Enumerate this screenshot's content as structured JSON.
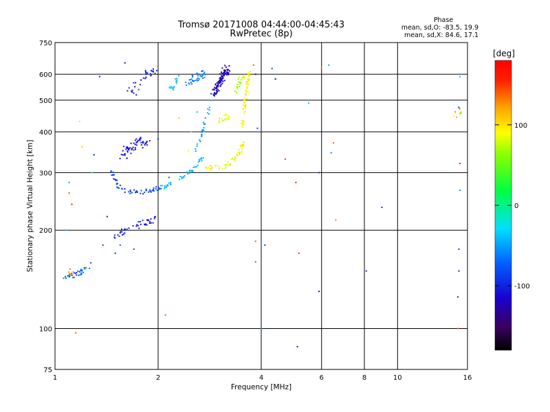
{
  "chart_data": {
    "type": "scatter",
    "title": "Tromsø 20171008 04:44:00-04:45:43",
    "subtitle": "RwPretec (8p)",
    "xlabel": "Frequency [MHz]",
    "ylabel": "Stationary phase Virtual Height [km]",
    "x_scale": "log",
    "y_scale": "log",
    "xlim": [
      1,
      16
    ],
    "ylim": [
      75,
      750
    ],
    "x_ticks": [
      1,
      2,
      4,
      6,
      8,
      10,
      16
    ],
    "x_tick_labels": [
      "1",
      "2",
      "4",
      "6",
      "8",
      "10",
      "16"
    ],
    "y_ticks": [
      75,
      100,
      200,
      300,
      400,
      500,
      600,
      750
    ],
    "y_tick_labels": [
      "75",
      "100",
      "200",
      "300",
      "400",
      "500",
      "600",
      "750"
    ],
    "grid": true,
    "phase_info": {
      "title": "Phase",
      "line_o": "mean, sd,O: -83.5, 19.9",
      "line_x": "mean, sd,X:  84.6, 17.1"
    },
    "colorbar": {
      "label": "[deg]",
      "range": [
        -180,
        180
      ],
      "ticks": [
        100,
        0,
        -100
      ],
      "tick_labels": [
        "100",
        "0",
        "-100"
      ]
    },
    "clusters": [
      {
        "x": [
          1.05,
          1.12,
          1.2,
          1.28
        ],
        "y": [
          142,
          145,
          150,
          158
        ],
        "spread": 0.015,
        "n": 34,
        "phase": [
          -110,
          -70
        ]
      },
      {
        "x": [
          1.1,
          1.14
        ],
        "y": [
          150,
          145
        ],
        "spread": 0.015,
        "n": 6,
        "phase": [
          120,
          160
        ]
      },
      {
        "x": [
          1.48,
          1.58,
          1.72,
          1.85,
          1.95
        ],
        "y": [
          190,
          198,
          205,
          212,
          218
        ],
        "spread": 0.02,
        "n": 44,
        "phase": [
          -125,
          -105
        ]
      },
      {
        "x": [
          1.46,
          1.5,
          1.55,
          1.65,
          1.8,
          1.95,
          2.05
        ],
        "y": [
          305,
          285,
          268,
          262,
          262,
          266,
          270
        ],
        "spread": 0.012,
        "n": 60,
        "phase": [
          -110,
          -90
        ]
      },
      {
        "x": [
          1.58,
          1.65,
          1.75,
          1.85
        ],
        "y": [
          340,
          355,
          375,
          365
        ],
        "spread": 0.025,
        "n": 58,
        "phase": [
          -125,
          -105
        ]
      },
      {
        "x": [
          2.05,
          2.2,
          2.4,
          2.55,
          2.7
        ],
        "y": [
          270,
          278,
          292,
          310,
          335
        ],
        "spread": 0.012,
        "n": 46,
        "phase": [
          -75,
          -55
        ]
      },
      {
        "x": [
          2.55,
          2.65,
          2.75,
          2.85,
          2.95
        ],
        "y": [
          340,
          380,
          430,
          490,
          545
        ],
        "spread": 0.01,
        "n": 30,
        "phase": [
          -80,
          -60
        ]
      },
      {
        "x": [
          2.7,
          2.9,
          3.1,
          3.3,
          3.45,
          3.55
        ],
        "y": [
          315,
          310,
          312,
          325,
          345,
          370
        ],
        "spread": 0.012,
        "n": 55,
        "phase": [
          70,
          110
        ]
      },
      {
        "x": [
          3.5,
          3.55,
          3.6,
          3.65,
          3.7
        ],
        "y": [
          400,
          450,
          510,
          560,
          610
        ],
        "spread": 0.01,
        "n": 60,
        "phase": [
          80,
          110
        ]
      },
      {
        "x": [
          3.35,
          3.45,
          3.55
        ],
        "y": [
          530,
          560,
          600
        ],
        "spread": 0.015,
        "n": 20,
        "phase": [
          40,
          75
        ]
      },
      {
        "x": [
          3.0,
          3.1,
          3.2
        ],
        "y": [
          430,
          440,
          445
        ],
        "spread": 0.015,
        "n": 16,
        "phase": [
          60,
          95
        ]
      },
      {
        "x": [
          2.9,
          3.0,
          3.1,
          3.2
        ],
        "y": [
          520,
          560,
          600,
          630
        ],
        "spread": 0.02,
        "n": 95,
        "phase": [
          -140,
          -115
        ]
      },
      {
        "x": [
          2.45,
          2.6,
          2.75
        ],
        "y": [
          560,
          590,
          610
        ],
        "spread": 0.02,
        "n": 38,
        "phase": [
          -95,
          -70
        ]
      },
      {
        "x": [
          1.65,
          1.75,
          1.85,
          1.95
        ],
        "y": [
          520,
          555,
          600,
          610
        ],
        "spread": 0.025,
        "n": 32,
        "phase": [
          -120,
          -100
        ]
      },
      {
        "x": [
          2.15,
          2.3
        ],
        "y": [
          540,
          580
        ],
        "spread": 0.02,
        "n": 16,
        "phase": [
          -70,
          -50
        ]
      },
      {
        "x": [
          14.9
        ],
        "y": [
          460
        ],
        "spread": 0.03,
        "n": 10,
        "phase": [
          -180,
          180
        ]
      }
    ],
    "scattered_points": [
      [
        1.08,
        200,
        -60
      ],
      [
        1.1,
        260,
        150
      ],
      [
        1.1,
        280,
        -70
      ],
      [
        1.12,
        240,
        170
      ],
      [
        1.15,
        97,
        150
      ],
      [
        1.18,
        430,
        100
      ],
      [
        1.2,
        360,
        110
      ],
      [
        1.28,
        300,
        -50
      ],
      [
        1.3,
        340,
        -120
      ],
      [
        1.35,
        590,
        -110
      ],
      [
        1.38,
        180,
        -100
      ],
      [
        1.42,
        220,
        -130
      ],
      [
        1.5,
        170,
        -110
      ],
      [
        1.55,
        180,
        -90
      ],
      [
        1.6,
        650,
        -120
      ],
      [
        1.7,
        175,
        -100
      ],
      [
        2.0,
        380,
        -100
      ],
      [
        2.1,
        110,
        150
      ],
      [
        2.15,
        290,
        -90
      ],
      [
        2.3,
        440,
        110
      ],
      [
        2.45,
        350,
        80
      ],
      [
        2.5,
        400,
        120
      ],
      [
        2.6,
        460,
        -60
      ],
      [
        3.8,
        640,
        150
      ],
      [
        3.85,
        185,
        150
      ],
      [
        3.85,
        160,
        160
      ],
      [
        3.85,
        600,
        -130
      ],
      [
        3.9,
        410,
        -100
      ],
      [
        4.0,
        100,
        -70
      ],
      [
        4.1,
        180,
        -100
      ],
      [
        4.3,
        625,
        -100
      ],
      [
        4.4,
        580,
        -120
      ],
      [
        4.7,
        330,
        160
      ],
      [
        5.05,
        280,
        170
      ],
      [
        5.1,
        88,
        -110
      ],
      [
        5.15,
        170,
        160
      ],
      [
        5.5,
        490,
        -60
      ],
      [
        5.9,
        300,
        -110
      ],
      [
        5.9,
        130,
        -130
      ],
      [
        6.0,
        630,
        140
      ],
      [
        6.3,
        640,
        -70
      ],
      [
        6.4,
        345,
        -80
      ],
      [
        6.5,
        370,
        150
      ],
      [
        6.6,
        215,
        140
      ],
      [
        8.1,
        150,
        -110
      ],
      [
        9.0,
        235,
        -110
      ],
      [
        15.0,
        100,
        150
      ],
      [
        15.0,
        125,
        -110
      ],
      [
        15.1,
        150,
        -110
      ],
      [
        15.1,
        175,
        -100
      ],
      [
        15.2,
        265,
        -80
      ],
      [
        15.2,
        590,
        -60
      ],
      [
        15.2,
        320,
        170
      ]
    ]
  }
}
